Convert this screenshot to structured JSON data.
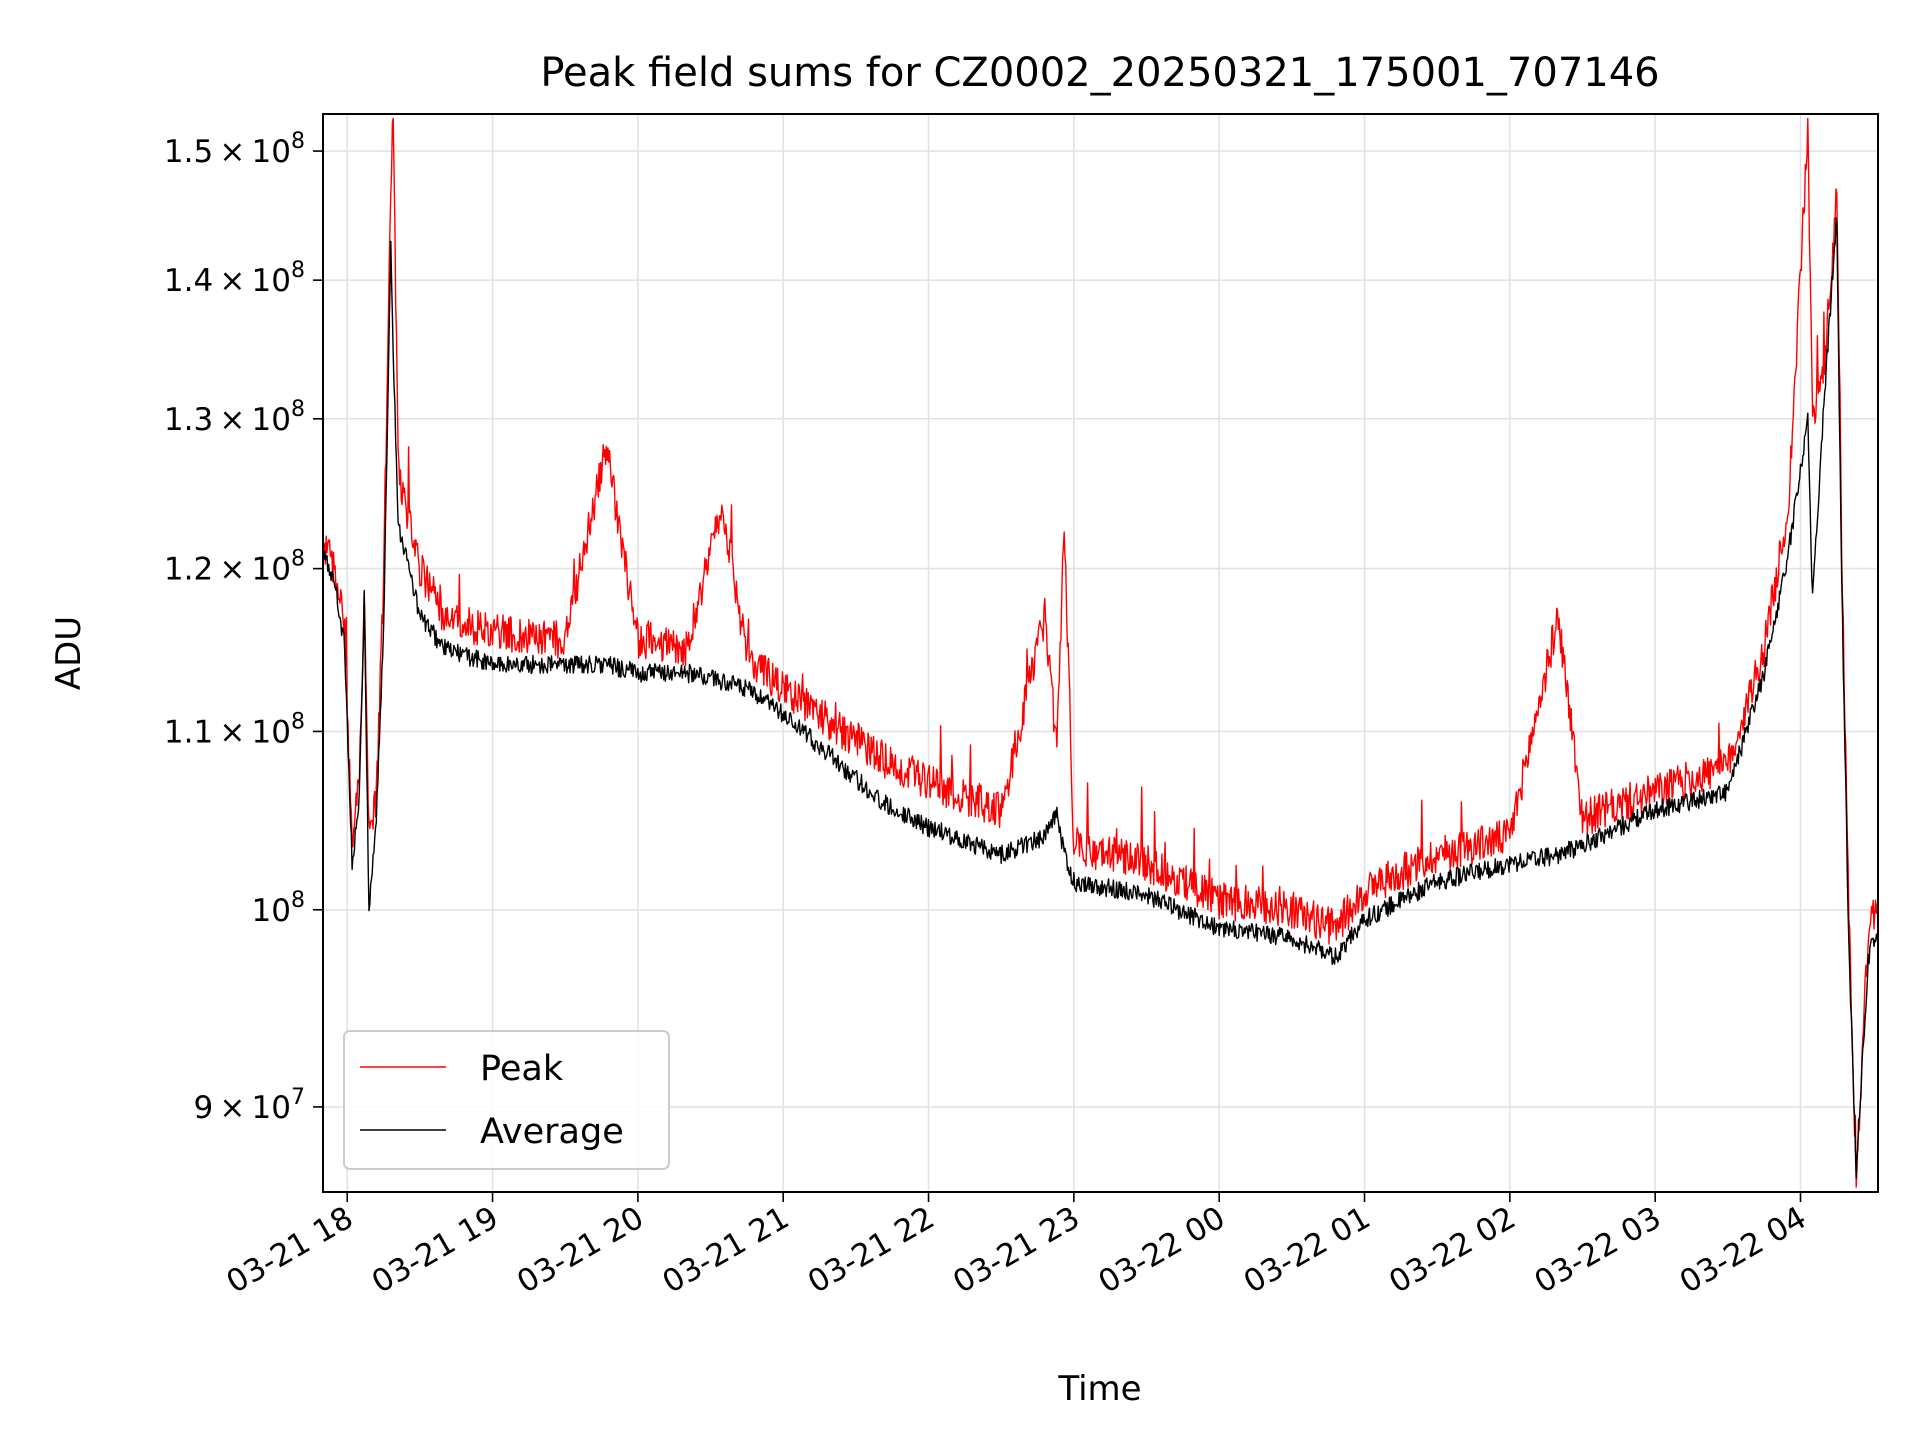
{
  "chart_data": {
    "type": "line",
    "title": "Peak field sums for CZ0002_20250321_175001_707146",
    "xlabel": "Time",
    "ylabel": "ADU",
    "yscale": "log",
    "ylim": [
      86000000,
      153000000
    ],
    "xlim": [
      "2025-03-21 17:50",
      "2025-03-22 04:32"
    ],
    "grid": true,
    "legend_location": "lower left",
    "x_tick_labels": [
      "03-21 18",
      "03-21 19",
      "03-21 20",
      "03-21 21",
      "03-21 22",
      "03-21 23",
      "03-22 00",
      "03-22 01",
      "03-22 02",
      "03-22 03",
      "03-22 04"
    ],
    "y_ticks": [
      {
        "value": 150000000,
        "mantissa": "1.5",
        "exponent": "8"
      },
      {
        "value": 140000000,
        "mantissa": "1.4",
        "exponent": "8"
      },
      {
        "value": 130000000,
        "mantissa": "1.3",
        "exponent": "8"
      },
      {
        "value": 120000000,
        "mantissa": "1.2",
        "exponent": "8"
      },
      {
        "value": 110000000,
        "mantissa": "1.1",
        "exponent": "8"
      },
      {
        "value": 100000000,
        "mantissa": "",
        "exponent": "8"
      },
      {
        "value": 90000000,
        "mantissa": "9",
        "exponent": "7"
      }
    ],
    "series": [
      {
        "name": "Peak",
        "color": "#ff0000",
        "points": [
          [
            "2025-03-21 17:50",
            121500000
          ],
          [
            "2025-03-21 17:55",
            120000000
          ],
          [
            "2025-03-21 17:59",
            116000000
          ],
          [
            "2025-03-21 18:02",
            103500000
          ],
          [
            "2025-03-21 18:05",
            107000000
          ],
          [
            "2025-03-21 18:07",
            119000000
          ],
          [
            "2025-03-21 18:09",
            104000000
          ],
          [
            "2025-03-21 18:12",
            106000000
          ],
          [
            "2025-03-21 18:15",
            119000000
          ],
          [
            "2025-03-21 18:18",
            147000000
          ],
          [
            "2025-03-21 18:19",
            153000000
          ],
          [
            "2025-03-21 18:21",
            127000000
          ],
          [
            "2025-03-21 18:24",
            124000000
          ],
          [
            "2025-03-21 18:30",
            120000000
          ],
          [
            "2025-03-21 18:40",
            117000000
          ],
          [
            "2025-03-21 19:00",
            116000000
          ],
          [
            "2025-03-21 19:30",
            115500000
          ],
          [
            "2025-03-21 19:47",
            128000000
          ],
          [
            "2025-03-21 20:00",
            115500000
          ],
          [
            "2025-03-21 20:20",
            115000000
          ],
          [
            "2025-03-21 20:35",
            124000000
          ],
          [
            "2025-03-21 20:45",
            114500000
          ],
          [
            "2025-03-21 21:00",
            112500000
          ],
          [
            "2025-03-21 21:20",
            110500000
          ],
          [
            "2025-03-21 21:40",
            108500000
          ],
          [
            "2025-03-21 22:00",
            107000000
          ],
          [
            "2025-03-21 22:30",
            105500000
          ],
          [
            "2025-03-21 22:48",
            117000000
          ],
          [
            "2025-03-21 22:53",
            109000000
          ],
          [
            "2025-03-21 22:56",
            123000000
          ],
          [
            "2025-03-21 23:00",
            103500000
          ],
          [
            "2025-03-21 23:30",
            102500000
          ],
          [
            "2025-03-22 00:00",
            100500000
          ],
          [
            "2025-03-22 00:30",
            100000000
          ],
          [
            "2025-03-22 00:48",
            99000000
          ],
          [
            "2025-03-22 01:00",
            101000000
          ],
          [
            "2025-03-22 01:30",
            103000000
          ],
          [
            "2025-03-22 02:00",
            104000000
          ],
          [
            "2025-03-22 02:20",
            117000000
          ],
          [
            "2025-03-22 02:30",
            105000000
          ],
          [
            "2025-03-22 03:00",
            106500000
          ],
          [
            "2025-03-22 03:30",
            108000000
          ],
          [
            "2025-03-22 03:45",
            115000000
          ],
          [
            "2025-03-22 03:55",
            124000000
          ],
          [
            "2025-03-22 04:03",
            151500000
          ],
          [
            "2025-03-22 04:05",
            130000000
          ],
          [
            "2025-03-22 04:10",
            134000000
          ],
          [
            "2025-03-22 04:15",
            146500000
          ],
          [
            "2025-03-22 04:17",
            121000000
          ],
          [
            "2025-03-22 04:20",
            100000000
          ],
          [
            "2025-03-22 04:23",
            86500000
          ],
          [
            "2025-03-22 04:28",
            99000000
          ],
          [
            "2025-03-22 04:32",
            100500000
          ]
        ]
      },
      {
        "name": "Average",
        "color": "#000000",
        "points": [
          [
            "2025-03-21 17:50",
            121000000
          ],
          [
            "2025-03-21 17:55",
            119000000
          ],
          [
            "2025-03-21 17:59",
            115000000
          ],
          [
            "2025-03-21 18:02",
            102500000
          ],
          [
            "2025-03-21 18:05",
            106000000
          ],
          [
            "2025-03-21 18:07",
            118000000
          ],
          [
            "2025-03-21 18:09",
            100000000
          ],
          [
            "2025-03-21 18:12",
            105000000
          ],
          [
            "2025-03-21 18:15",
            116000000
          ],
          [
            "2025-03-21 18:18",
            143000000
          ],
          [
            "2025-03-21 18:19",
            135000000
          ],
          [
            "2025-03-21 18:21",
            123000000
          ],
          [
            "2025-03-21 18:24",
            121000000
          ],
          [
            "2025-03-21 18:30",
            117000000
          ],
          [
            "2025-03-21 18:40",
            115000000
          ],
          [
            "2025-03-21 19:00",
            114000000
          ],
          [
            "2025-03-21 19:30",
            114000000
          ],
          [
            "2025-03-21 19:47",
            114000000
          ],
          [
            "2025-03-21 20:00",
            113500000
          ],
          [
            "2025-03-21 20:20",
            113500000
          ],
          [
            "2025-03-21 20:35",
            113000000
          ],
          [
            "2025-03-21 20:45",
            112500000
          ],
          [
            "2025-03-21 21:00",
            111000000
          ],
          [
            "2025-03-21 21:20",
            108500000
          ],
          [
            "2025-03-21 21:40",
            106000000
          ],
          [
            "2025-03-21 22:00",
            104500000
          ],
          [
            "2025-03-21 22:30",
            103000000
          ],
          [
            "2025-03-21 22:48",
            104000000
          ],
          [
            "2025-03-21 22:53",
            105500000
          ],
          [
            "2025-03-21 22:56",
            103000000
          ],
          [
            "2025-03-21 23:00",
            101500000
          ],
          [
            "2025-03-21 23:30",
            100800000
          ],
          [
            "2025-03-22 00:00",
            99000000
          ],
          [
            "2025-03-22 00:30",
            98500000
          ],
          [
            "2025-03-22 00:48",
            97500000
          ],
          [
            "2025-03-22 01:00",
            99500000
          ],
          [
            "2025-03-22 01:30",
            101500000
          ],
          [
            "2025-03-22 02:00",
            102500000
          ],
          [
            "2025-03-22 02:20",
            103000000
          ],
          [
            "2025-03-22 02:30",
            103500000
          ],
          [
            "2025-03-22 03:00",
            105500000
          ],
          [
            "2025-03-22 03:30",
            106500000
          ],
          [
            "2025-03-22 03:45",
            113500000
          ],
          [
            "2025-03-22 03:55",
            121000000
          ],
          [
            "2025-03-22 04:03",
            130000000
          ],
          [
            "2025-03-22 04:05",
            118000000
          ],
          [
            "2025-03-22 04:10",
            132000000
          ],
          [
            "2025-03-22 04:15",
            145000000
          ],
          [
            "2025-03-22 04:17",
            119000000
          ],
          [
            "2025-03-22 04:20",
            98000000
          ],
          [
            "2025-03-22 04:23",
            87000000
          ],
          [
            "2025-03-22 04:28",
            97500000
          ],
          [
            "2025-03-22 04:32",
            99000000
          ]
        ]
      }
    ]
  }
}
